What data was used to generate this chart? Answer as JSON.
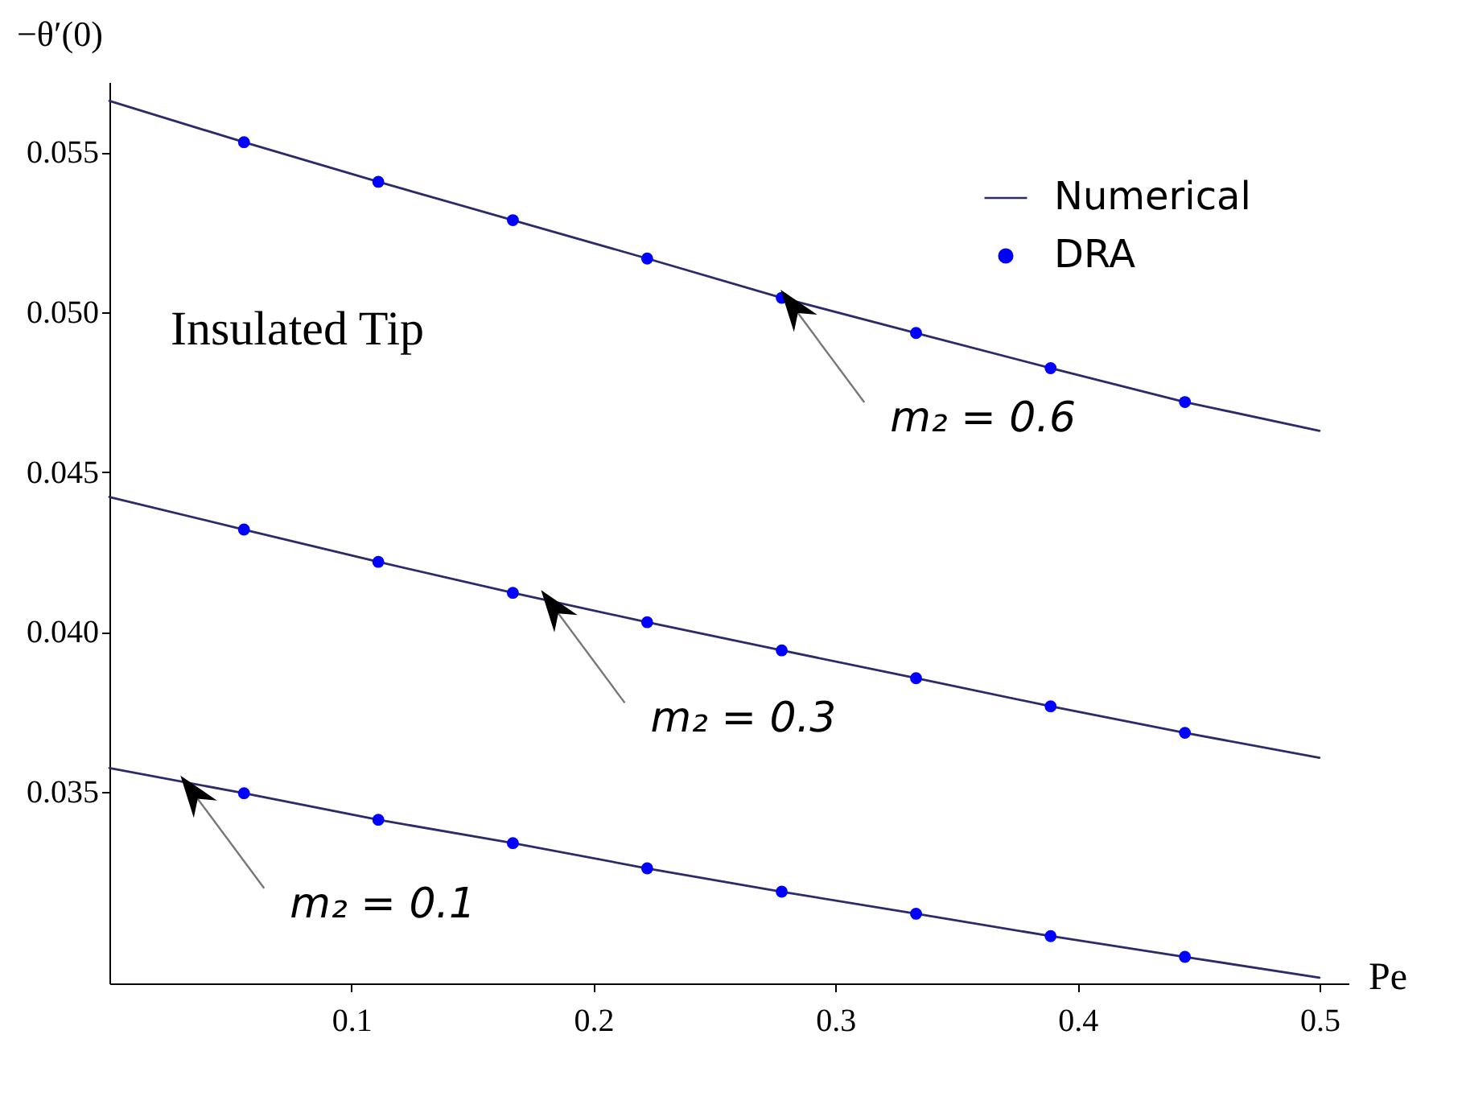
{
  "chart_data": {
    "type": "line",
    "xlabel": "Pe",
    "ylabel": "−θ′(0)",
    "xlim": [
      0,
      0.512
    ],
    "ylim": [
      0.029,
      0.0572
    ],
    "xticks": [
      0.1,
      0.2,
      0.3,
      0.4,
      0.5
    ],
    "yticks": [
      0.035,
      {
        "value": 0.04,
        "label": "0.040"
      },
      0.045,
      {
        "value": 0.05,
        "label": "0.050"
      },
      0.055
    ],
    "grid": false,
    "legend": "top right",
    "line_style": "solid",
    "series": [
      {
        "name": "Numerical",
        "type": "line",
        "color": "#2b2b6b",
        "x": [
          0,
          0.0556,
          0.1111,
          0.1667,
          0.2222,
          0.2778,
          0.3333,
          0.3889,
          0.4444,
          0.5
        ],
        "values": [
          0.05661,
          0.05532,
          0.05408,
          0.05288,
          0.05168,
          0.05045,
          0.04935,
          0.04825,
          0.04719,
          0.04629
        ]
      },
      {
        "color": "#2b2b6b",
        "x": [
          0,
          0.0556,
          0.1111,
          0.1667,
          0.2222,
          0.2778,
          0.3333,
          0.3889,
          0.4444,
          0.5
        ],
        "values": [
          0.04422,
          0.0432,
          0.04219,
          0.04122,
          0.0403,
          0.03942,
          0.03855,
          0.03767,
          0.03684,
          0.03606
        ]
      },
      {
        "color": "#2b2b6b",
        "x": [
          0,
          0.0556,
          0.1111,
          0.1667,
          0.2222,
          0.2778,
          0.3333,
          0.3889,
          0.4444,
          0.5
        ],
        "values": [
          0.03574,
          0.03495,
          0.03412,
          0.03339,
          0.0326,
          0.03187,
          0.03118,
          0.03048,
          0.02983,
          0.02918
        ]
      },
      {
        "name": "DRA",
        "type": "scatter",
        "color": "#0000ff",
        "marker": "circle",
        "x": [
          0.0556,
          0.1111,
          0.1667,
          0.2222,
          0.2778,
          0.3333,
          0.3889,
          0.4444
        ],
        "values": [
          0.05532,
          0.05408,
          0.05288,
          0.05168,
          0.05045,
          0.04935,
          0.04825,
          0.04719
        ]
      },
      {
        "type": "scatter",
        "color": "#0000ff",
        "marker": "circle",
        "x": [
          0.0556,
          0.1111,
          0.1667,
          0.2222,
          0.2778,
          0.3333,
          0.3889,
          0.4444
        ],
        "values": [
          0.0432,
          0.04219,
          0.04122,
          0.0403,
          0.03942,
          0.03855,
          0.03767,
          0.03684
        ]
      },
      {
        "type": "scatter",
        "color": "#0000ff",
        "marker": "circle",
        "x": [
          0.0556,
          0.1111,
          0.1667,
          0.2222,
          0.2778,
          0.3333,
          0.3889,
          0.4444
        ],
        "values": [
          0.03495,
          0.03412,
          0.03339,
          0.0326,
          0.03187,
          0.03118,
          0.03048,
          0.02983
        ]
      }
    ],
    "annotations": [
      "Insulated Tip",
      {
        "text": "m₂ = 0.6",
        "x": 0.284,
        "y": 0.0502
      },
      {
        "text": "m₂ = 0.3",
        "x": 0.185,
        "y": 0.0408
      },
      {
        "text": "m₂ = 0.1",
        "x": 0.036,
        "y": 0.035
      }
    ]
  }
}
